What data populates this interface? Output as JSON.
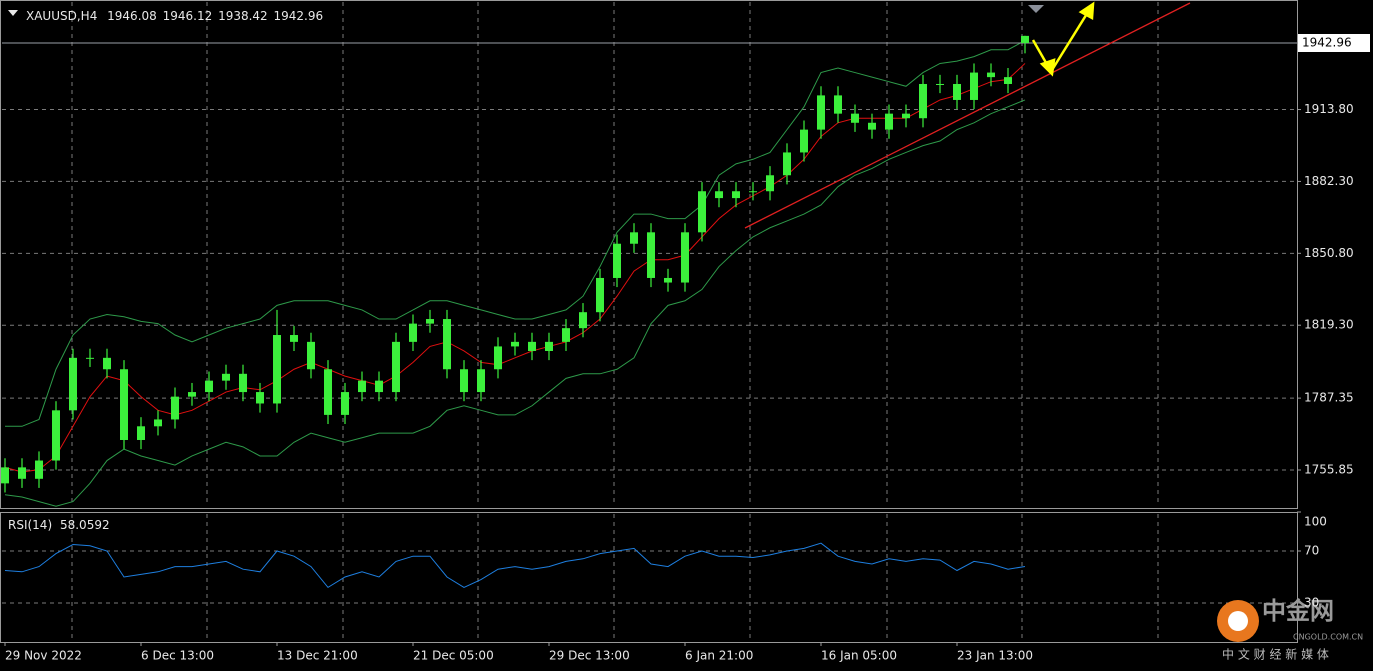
{
  "chart_data": {
    "type": "candlestick",
    "symbol": "XAUUSD,H4",
    "categories": [
      "29 Nov 2022",
      null,
      null,
      null,
      null,
      null,
      null,
      null,
      "6 Dec 13:00",
      null,
      null,
      null,
      null,
      null,
      null,
      null,
      "13 Dec 21:00",
      null,
      null,
      null,
      null,
      null,
      null,
      null,
      "21 Dec 05:00",
      null,
      null,
      null,
      null,
      null,
      null,
      null,
      "29 Dec 13:00",
      null,
      null,
      null,
      null,
      null,
      null,
      null,
      "6 Jan 21:00",
      null,
      null,
      null,
      null,
      null,
      null,
      null,
      "16 Jan 05:00",
      null,
      null,
      null,
      null,
      null,
      null,
      null,
      "23 Jan 13:00",
      null,
      null,
      null,
      null
    ],
    "open": [
      1750,
      1757,
      1752,
      1760,
      1782,
      1805,
      1805,
      1800,
      1769,
      1775,
      1778,
      1788,
      1790,
      1795,
      1798,
      1790,
      1785,
      1815,
      1812,
      1800,
      1780,
      1790,
      1795,
      1790,
      1812,
      1820,
      1822,
      1800,
      1790,
      1800,
      1810,
      1812,
      1808,
      1812,
      1818,
      1825,
      1840,
      1855,
      1860,
      1840,
      1838,
      1860,
      1878,
      1875,
      1878,
      1878,
      1885,
      1895,
      1905,
      1920,
      1912,
      1908,
      1905,
      1912,
      1910,
      1925,
      1925,
      1918,
      1930,
      1928,
      1946.08
    ],
    "high": [
      1761,
      1761,
      1764,
      1786,
      1809,
      1809,
      1809,
      1804,
      1779,
      1782,
      1792,
      1794,
      1799,
      1802,
      1802,
      1794,
      1826,
      1819,
      1816,
      1804,
      1794,
      1799,
      1799,
      1816,
      1824,
      1826,
      1826,
      1804,
      1804,
      1814,
      1816,
      1816,
      1816,
      1822,
      1829,
      1844,
      1859,
      1864,
      1864,
      1844,
      1864,
      1882,
      1882,
      1882,
      1882,
      1889,
      1899,
      1909,
      1924,
      1924,
      1916,
      1912,
      1916,
      1916,
      1929,
      1929,
      1929,
      1934,
      1934,
      1932,
      1946.12
    ],
    "low": [
      1746,
      1748,
      1748,
      1756,
      1778,
      1801,
      1796,
      1765,
      1765,
      1771,
      1774,
      1784,
      1786,
      1791,
      1786,
      1781,
      1781,
      1808,
      1796,
      1776,
      1776,
      1786,
      1786,
      1786,
      1808,
      1816,
      1796,
      1786,
      1786,
      1796,
      1806,
      1804,
      1804,
      1808,
      1814,
      1821,
      1836,
      1851,
      1836,
      1834,
      1834,
      1856,
      1871,
      1871,
      1874,
      1874,
      1881,
      1891,
      1901,
      1908,
      1904,
      1901,
      1901,
      1906,
      1906,
      1921,
      1914,
      1914,
      1924,
      1921,
      1938.42
    ],
    "close": [
      1757,
      1752,
      1760,
      1782,
      1805,
      1805,
      1800,
      1769,
      1775,
      1778,
      1788,
      1790,
      1795,
      1798,
      1790,
      1785,
      1815,
      1812,
      1800,
      1780,
      1790,
      1795,
      1790,
      1812,
      1820,
      1822,
      1800,
      1790,
      1800,
      1810,
      1812,
      1808,
      1812,
      1818,
      1825,
      1840,
      1855,
      1860,
      1840,
      1838,
      1860,
      1878,
      1875,
      1878,
      1878,
      1885,
      1895,
      1905,
      1920,
      1912,
      1908,
      1905,
      1912,
      1910,
      1925,
      1925,
      1918,
      1930,
      1928,
      1925,
      1942.96
    ],
    "color": "#3cf03c",
    "overlays": {
      "ma": {
        "color": "#e01010",
        "values": [
          1757,
          1755,
          1756,
          1762,
          1775,
          1788,
          1797,
          1795,
          1788,
          1782,
          1780,
          1782,
          1786,
          1790,
          1792,
          1791,
          1795,
          1800,
          1803,
          1800,
          1797,
          1795,
          1793,
          1797,
          1803,
          1810,
          1812,
          1808,
          1803,
          1802,
          1805,
          1808,
          1810,
          1812,
          1816,
          1822,
          1832,
          1843,
          1848,
          1848,
          1850,
          1858,
          1866,
          1872,
          1876,
          1880,
          1885,
          1892,
          1902,
          1908,
          1910,
          1910,
          1910,
          1910,
          1914,
          1918,
          1920,
          1923,
          1926,
          1927,
          1934
        ]
      },
      "upper": {
        "color": "#2e9a4a",
        "values": [
          1775,
          1775,
          1778,
          1800,
          1815,
          1822,
          1824,
          1823,
          1821,
          1820,
          1815,
          1812,
          1815,
          1818,
          1820,
          1822,
          1828,
          1830,
          1830,
          1830,
          1828,
          1826,
          1822,
          1822,
          1826,
          1830,
          1830,
          1828,
          1826,
          1824,
          1822,
          1822,
          1824,
          1826,
          1832,
          1845,
          1860,
          1868,
          1868,
          1866,
          1866,
          1872,
          1885,
          1890,
          1892,
          1895,
          1905,
          1915,
          1930,
          1932,
          1930,
          1928,
          1926,
          1924,
          1930,
          1934,
          1935,
          1937,
          1940,
          1940,
          1944
        ]
      },
      "lower": {
        "color": "#2e9a4a",
        "values": [
          1745,
          1744,
          1742,
          1740,
          1742,
          1750,
          1760,
          1765,
          1762,
          1760,
          1758,
          1762,
          1765,
          1768,
          1766,
          1762,
          1762,
          1768,
          1772,
          1770,
          1768,
          1770,
          1772,
          1772,
          1772,
          1775,
          1782,
          1784,
          1782,
          1780,
          1780,
          1784,
          1790,
          1796,
          1798,
          1798,
          1800,
          1805,
          1820,
          1828,
          1830,
          1835,
          1845,
          1852,
          1858,
          1862,
          1865,
          1868,
          1872,
          1880,
          1885,
          1888,
          1892,
          1895,
          1898,
          1900,
          1905,
          1908,
          1912,
          1915,
          1918
        ]
      }
    },
    "ylim": [
      1739.2,
      1961.8
    ],
    "yticks": [
      1755.85,
      1787.35,
      {
        "value": 1819.3,
        "label": "1819.30"
      },
      {
        "value": 1850.8,
        "label": "1850.80"
      },
      {
        "value": 1882.3,
        "label": "1882.30"
      },
      {
        "value": 1913.8,
        "label": "1913.80"
      }
    ],
    "grid": true,
    "indicator": {
      "type": "line",
      "label": "RSI(14)",
      "color": "#1e7fe0",
      "values": [
        55,
        54,
        58,
        68,
        75,
        74,
        70,
        50,
        52,
        54,
        58,
        58,
        60,
        62,
        56,
        54,
        70,
        66,
        58,
        42,
        50,
        54,
        50,
        62,
        66,
        66,
        50,
        42,
        48,
        56,
        58,
        56,
        58,
        62,
        64,
        68,
        70,
        72,
        60,
        58,
        66,
        70,
        66,
        66,
        65,
        67,
        70,
        72,
        76,
        66,
        62,
        60,
        64,
        62,
        64,
        63,
        55,
        62,
        60,
        56,
        58.0592
      ],
      "ylim": [
        0,
        100
      ],
      "yticks": [
        30,
        70,
        100
      ]
    }
  },
  "watermark": {
    "name": "中金网",
    "domain": "CNGOLD.COM.CN",
    "slogan": "中 文 财 经 新 媒 体"
  }
}
